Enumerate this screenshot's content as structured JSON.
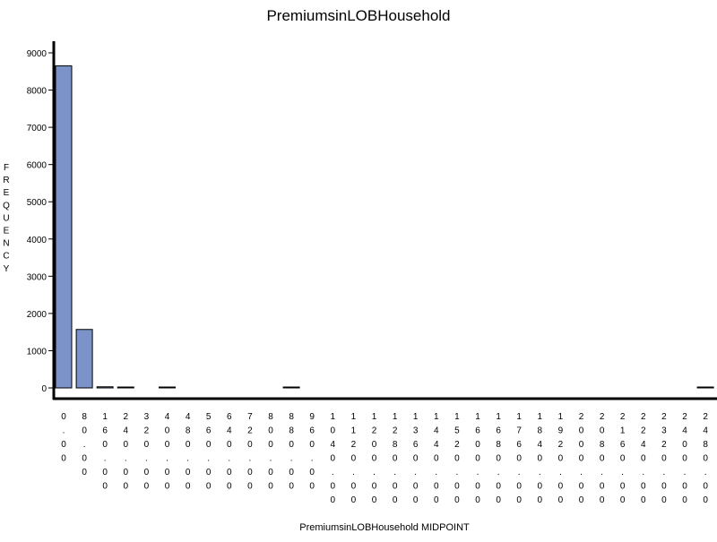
{
  "chart_data": {
    "type": "bar",
    "title": "PremiumsinLOBHousehold",
    "xlabel": "PremiumsinLOBHousehold MIDPOINT",
    "ylabel": "FREQUENCY",
    "ylim": [
      0,
      9200
    ],
    "yticks": [
      0,
      1000,
      2000,
      3000,
      4000,
      5000,
      6000,
      7000,
      8000,
      9000
    ],
    "grid": false,
    "categories": [
      "0.00",
      "80.00",
      "160.00",
      "240.00",
      "320.00",
      "400.00",
      "480.00",
      "560.00",
      "640.00",
      "720.00",
      "800.00",
      "880.00",
      "960.00",
      "1040.00",
      "1120.00",
      "1200.00",
      "1280.00",
      "1360.00",
      "1440.00",
      "1520.00",
      "1600.00",
      "1680.00",
      "1760.00",
      "1840.00",
      "1920.00",
      "2000.00",
      "2080.00",
      "2160.00",
      "2240.00",
      "2320.00",
      "2400.00",
      "2480.00"
    ],
    "series": [
      {
        "values": [
          8650,
          1570,
          30,
          5,
          0,
          3,
          0,
          0,
          0,
          0,
          0,
          2,
          0,
          0,
          0,
          0,
          0,
          0,
          0,
          0,
          0,
          0,
          0,
          0,
          0,
          0,
          0,
          0,
          0,
          0,
          0,
          2
        ]
      }
    ],
    "bar_color": "#7b93c8"
  }
}
